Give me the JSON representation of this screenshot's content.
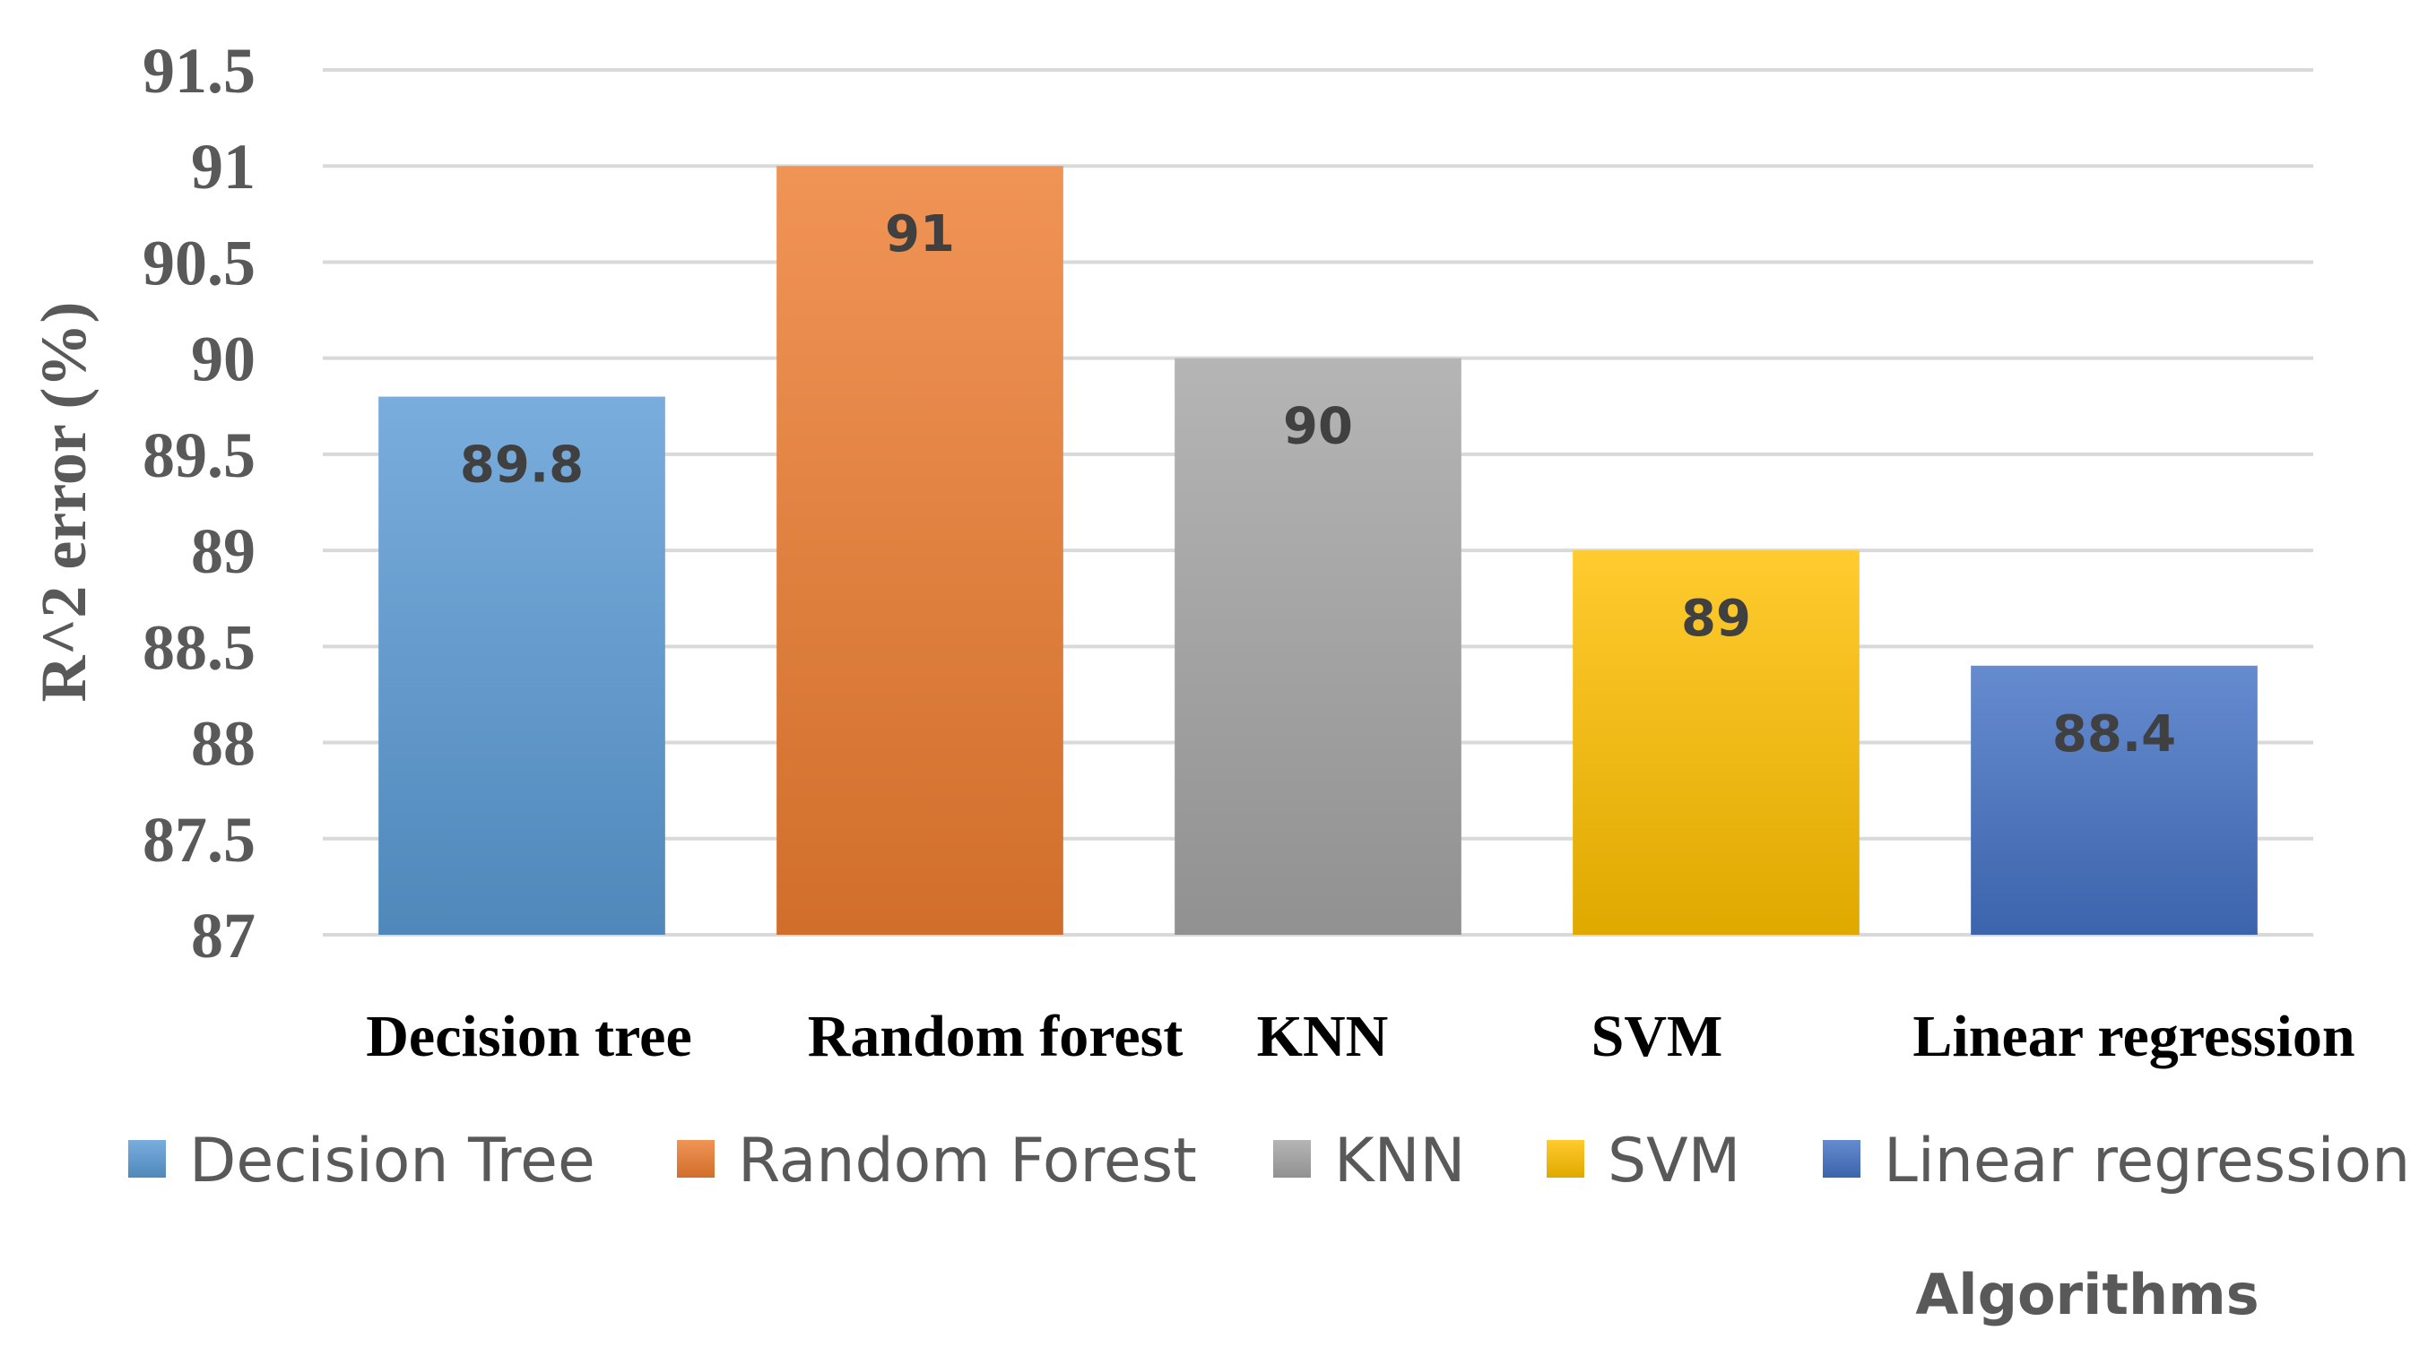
{
  "chart_data": {
    "type": "bar",
    "categories": [
      "Decision tree",
      "Random forest",
      "KNN",
      "SVM",
      "Linear regression"
    ],
    "values": [
      89.8,
      91,
      90,
      89,
      88.4
    ],
    "data_labels": [
      "89.8",
      "91",
      "90",
      "89",
      "88.4"
    ],
    "legend": [
      "Decision Tree",
      "Random Forest",
      "KNN",
      "SVM",
      "Linear regression"
    ],
    "colors": [
      "#5b9bd5",
      "#ed7d31",
      "#a5a5a5",
      "#ffc000",
      "#4472c4"
    ],
    "ylabel": "R^2  error (%)",
    "xlabel": "Algorithms",
    "ylim": [
      87,
      91.5
    ],
    "yticks": [
      "87",
      "87.5",
      "88",
      "88.5",
      "89",
      "89.5",
      "90",
      "90.5",
      "91",
      "91.5"
    ],
    "grid": true,
    "legend_position": "bottom"
  }
}
